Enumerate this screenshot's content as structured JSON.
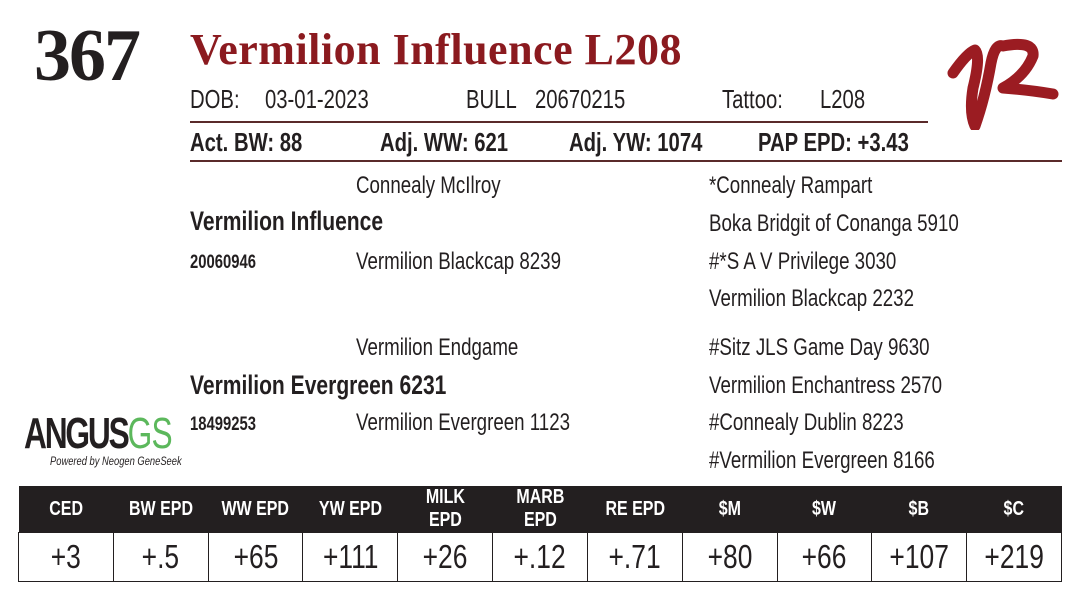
{
  "lot_number": "367",
  "animal_name": "Vermilion Influence L208",
  "info_row": {
    "dob_label": "DOB:",
    "dob": "03-01-2023",
    "sex": "BULL",
    "registration": "20670215",
    "tattoo_label": "Tattoo:",
    "tattoo": "L208"
  },
  "weights": {
    "act_bw": "Act. BW: 88",
    "adj_ww": "Adj. WW: 621",
    "adj_yw": "Adj. YW: 1074",
    "pap_epd": "PAP EPD: +3.43"
  },
  "pedigree": {
    "sire": "Vermilion Influence",
    "sire_reg": "20060946",
    "sire_sire": "Connealy McIlroy",
    "sire_dam": "Vermilion Blackcap 8239",
    "dam": "Vermilion Evergreen 6231",
    "dam_reg": "18499253",
    "dam_sire": "Vermilion Endgame",
    "dam_dam": "Vermilion Evergreen 1123",
    "great_grandparents": [
      "*Connealy Rampart",
      "Boka Bridgit of Conanga 5910",
      "#*S A V Privilege 3030",
      "Vermilion Blackcap 2232",
      "#Sitz JLS Game Day 9630",
      "Vermilion Enchantress 2570",
      "#Connealy Dublin 8223",
      "#Vermilion Evergreen 8166"
    ]
  },
  "logo": {
    "brand_a": "ANGUS",
    "brand_b": "GS",
    "tagline": "Powered by Neogen GeneSeek",
    "brand_mark": "VR",
    "accent_color": "#8b1a1f",
    "gs_color": "#5cb85c"
  },
  "epd_table": {
    "headers": [
      "CED",
      "BW EPD",
      "WW EPD",
      "YW EPD",
      "MILK EPD",
      "MARB EPD",
      "RE EPD",
      "$M",
      "$W",
      "$B",
      "$C"
    ],
    "values": [
      "+3",
      "+.5",
      "+65",
      "+111",
      "+26",
      "+.12",
      "+.71",
      "+80",
      "+66",
      "+107",
      "+219"
    ]
  }
}
